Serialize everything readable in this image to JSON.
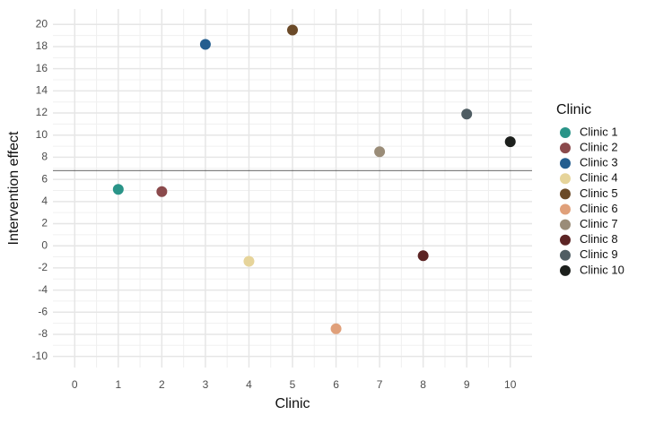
{
  "chart_data": {
    "type": "scatter",
    "x_label": "Clinic",
    "y_label": "Intervention effect",
    "legend_title": "Clinic",
    "xlim": [
      -0.5,
      10.5
    ],
    "xticks": [
      0,
      1,
      2,
      3,
      4,
      5,
      6,
      7,
      8,
      9,
      10
    ],
    "ylim": [
      -11,
      21.4
    ],
    "yticks": [
      -10,
      -8,
      -6,
      -4,
      -2,
      0,
      2,
      4,
      6,
      8,
      10,
      12,
      14,
      16,
      18,
      20
    ],
    "grid": true,
    "legend": "right",
    "hline": 6.8,
    "hline_color": "#333333",
    "series": [
      {
        "name": "Clinic 1",
        "color": "#2a9488",
        "x": [
          1
        ],
        "values": [
          5.1
        ]
      },
      {
        "name": "Clinic 2",
        "color": "#8b4a4c",
        "x": [
          2
        ],
        "values": [
          4.9
        ]
      },
      {
        "name": "Clinic 3",
        "color": "#245e8f",
        "x": [
          3
        ],
        "values": [
          18.2
        ]
      },
      {
        "name": "Clinic 4",
        "color": "#e6d49a",
        "x": [
          4
        ],
        "values": [
          -1.4
        ]
      },
      {
        "name": "Clinic 5",
        "color": "#6b4a28",
        "x": [
          5
        ],
        "values": [
          19.5
        ]
      },
      {
        "name": "Clinic 6",
        "color": "#e0a07a",
        "x": [
          6
        ],
        "values": [
          -7.5
        ]
      },
      {
        "name": "Clinic 7",
        "color": "#9a8c78",
        "x": [
          7
        ],
        "values": [
          8.5
        ]
      },
      {
        "name": "Clinic 8",
        "color": "#5c2424",
        "x": [
          8
        ],
        "values": [
          -0.9
        ]
      },
      {
        "name": "Clinic 9",
        "color": "#4f5d63",
        "x": [
          9
        ],
        "values": [
          11.9
        ]
      },
      {
        "name": "Clinic 10",
        "color": "#1c1f1c",
        "x": [
          10
        ],
        "values": [
          9.4
        ]
      }
    ]
  }
}
